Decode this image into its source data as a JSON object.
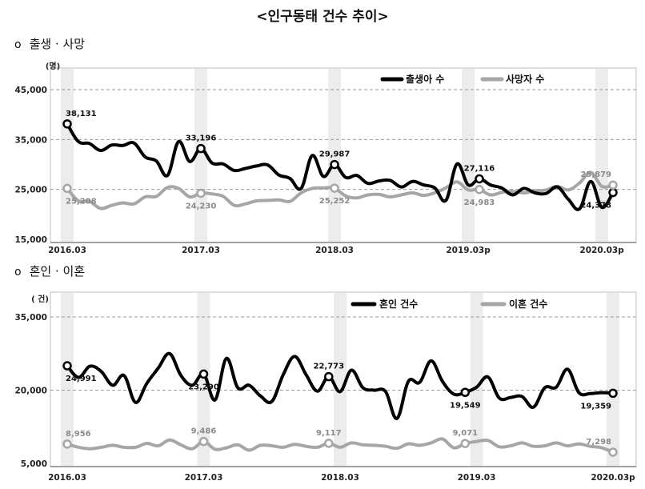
{
  "page_title": "<인구동태 건수 추이>",
  "sections": [
    {
      "bullet": "o",
      "title": "출생 · 사망"
    },
    {
      "bullet": "o",
      "title": "혼인 · 이혼"
    }
  ],
  "colors": {
    "series_dark": "#000000",
    "series_light": "#a6a6a6",
    "shade": "#ececec",
    "grid": "#9a9a9a"
  },
  "chart_data": [
    {
      "type": "line",
      "unit": "(명)",
      "ylim": [
        15000,
        45000
      ],
      "yticks": [
        15000,
        25000,
        35000,
        45000
      ],
      "ytick_labels": [
        "15,000",
        "25,000",
        "35,000",
        "45,000"
      ],
      "grid": "dashed horizontal",
      "legend_position": "top-right",
      "xtick_labels": [
        "2016.03",
        "2017.03",
        "2018.03",
        "2019.03p",
        "2020.03p"
      ],
      "xtick_months": [
        2,
        14,
        26,
        38,
        50
      ],
      "shaded_months": [
        2,
        14,
        26,
        38,
        50
      ],
      "series": [
        {
          "name": "출생아 수",
          "color": "#000000",
          "values": [
            38131,
            34600,
            34200,
            32800,
            33900,
            33800,
            34300,
            31500,
            30700,
            27800,
            34600,
            30600,
            33196,
            30300,
            30100,
            28800,
            29200,
            29700,
            29900,
            27900,
            27200,
            25200,
            31800,
            27600,
            29987,
            27400,
            27800,
            26200,
            26700,
            26800,
            25500,
            26600,
            25900,
            25300,
            22800,
            30100,
            25900,
            27116,
            25900,
            25300,
            23900,
            25200,
            24300,
            24200,
            25500,
            23000,
            21100,
            26600,
            21400,
            24378
          ],
          "labels": [
            {
              "i": 0,
              "text": "38,131",
              "pos": "above"
            },
            {
              "i": 12,
              "text": "33,196",
              "pos": "above"
            },
            {
              "i": 24,
              "text": "29,987",
              "pos": "above"
            },
            {
              "i": 37,
              "text": "27,116",
              "pos": "above"
            },
            {
              "i": 49,
              "text": "24,378",
              "pos": "below-left"
            }
          ]
        },
        {
          "name": "사망자 수",
          "color": "#a6a6a6",
          "values": [
            25208,
            22700,
            22600,
            21200,
            21800,
            22300,
            22100,
            23500,
            23600,
            25400,
            25200,
            23500,
            24230,
            24100,
            23600,
            21800,
            22100,
            22700,
            22800,
            22900,
            22600,
            24300,
            25200,
            25300,
            25252,
            23700,
            23300,
            23900,
            24000,
            23500,
            23900,
            24300,
            23800,
            24300,
            25300,
            26500,
            24900,
            24983,
            23900,
            24400,
            24600,
            24300,
            24700,
            24900,
            25600,
            24900,
            26300,
            28400,
            25600,
            25879
          ],
          "labels": [
            {
              "i": 0,
              "text": "25,208",
              "pos": "below"
            },
            {
              "i": 12,
              "text": "24,230",
              "pos": "below"
            },
            {
              "i": 24,
              "text": "25,252",
              "pos": "below"
            },
            {
              "i": 37,
              "text": "24,983",
              "pos": "below"
            },
            {
              "i": 49,
              "text": "25,879",
              "pos": "above-left"
            }
          ]
        }
      ]
    },
    {
      "type": "line",
      "unit": "( 건)",
      "ylim": [
        5000,
        35000
      ],
      "yticks": [
        5000,
        20000,
        35000
      ],
      "ytick_labels": [
        "5,000",
        "20,000",
        "35,000"
      ],
      "grid": "dashed horizontal",
      "legend_position": "top-right",
      "xtick_labels": [
        "2016.03",
        "2017.03",
        "2018.03",
        "2019.03",
        "2020.03p"
      ],
      "xtick_months": [
        2,
        14,
        26,
        38,
        50
      ],
      "shaded_months": [
        2,
        14,
        26,
        38,
        50
      ],
      "series": [
        {
          "name": "혼인 건수",
          "color": "#000000",
          "values": [
            24991,
            22600,
            24900,
            23800,
            21000,
            23000,
            17500,
            21400,
            24500,
            27500,
            23000,
            21000,
            23290,
            18000,
            26500,
            20500,
            21000,
            18800,
            17700,
            23200,
            26900,
            23200,
            19800,
            22773,
            19700,
            24100,
            20500,
            20000,
            19700,
            14200,
            21800,
            21600,
            26000,
            21800,
            19200,
            19549,
            20600,
            22700,
            18400,
            18500,
            18700,
            16500,
            20500,
            20600,
            24300,
            19500,
            19300,
            19500,
            19359
          ],
          "labels": [
            {
              "i": 0,
              "text": "24,991",
              "pos": "below"
            },
            {
              "i": 12,
              "text": "23,290",
              "pos": "below"
            },
            {
              "i": 23,
              "text": "22,773",
              "pos": "above"
            },
            {
              "i": 35,
              "text": "19,549",
              "pos": "below"
            },
            {
              "i": 48,
              "text": "19,359",
              "pos": "below-left"
            }
          ]
        },
        {
          "name": "이혼 건수",
          "color": "#a6a6a6",
          "values": [
            8956,
            8300,
            8000,
            8300,
            8700,
            8300,
            8300,
            9100,
            8600,
            9800,
            8800,
            8000,
            9486,
            7900,
            8200,
            8800,
            7700,
            8700,
            8600,
            8300,
            8900,
            8500,
            8300,
            9117,
            8300,
            9200,
            8800,
            8700,
            8500,
            8100,
            9000,
            8700,
            9200,
            10000,
            8200,
            9071,
            9500,
            9700,
            8400,
            8600,
            9200,
            8500,
            8600,
            9200,
            8600,
            9000,
            8500,
            8200,
            7298
          ],
          "labels": [
            {
              "i": 0,
              "text": "8,956",
              "pos": "above"
            },
            {
              "i": 12,
              "text": "9,486",
              "pos": "above"
            },
            {
              "i": 23,
              "text": "9,117",
              "pos": "above"
            },
            {
              "i": 35,
              "text": "9,071",
              "pos": "above"
            },
            {
              "i": 48,
              "text": "7,298",
              "pos": "above-left"
            }
          ]
        }
      ]
    }
  ]
}
